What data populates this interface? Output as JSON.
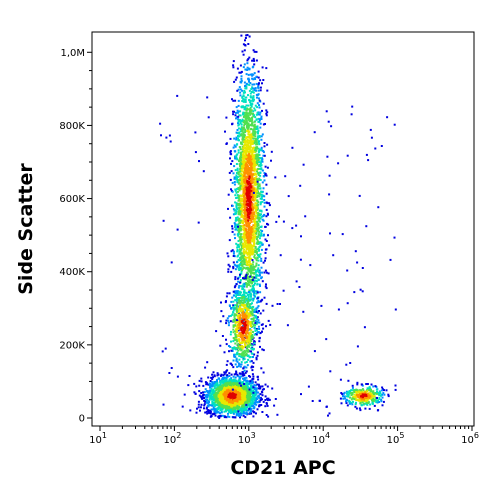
{
  "chart_data": {
    "type": "scatter",
    "title": "",
    "xlabel": "CD21 APC",
    "ylabel": "Side Scatter",
    "x_scale": "log",
    "xlim": [
      10,
      1000000
    ],
    "ylim": [
      0,
      1050000
    ],
    "grid": false,
    "legend": "none",
    "x_ticks": [
      {
        "value": 10,
        "base": "10",
        "exp": "1"
      },
      {
        "value": 100,
        "base": "10",
        "exp": "2"
      },
      {
        "value": 1000,
        "base": "10",
        "exp": "3"
      },
      {
        "value": 10000,
        "base": "10",
        "exp": "4"
      },
      {
        "value": 100000,
        "base": "10",
        "exp": "5"
      },
      {
        "value": 1000000,
        "base": "10",
        "exp": "6"
      }
    ],
    "y_ticks": [
      {
        "value": 0,
        "label": "0"
      },
      {
        "value": 200000,
        "label": "200K"
      },
      {
        "value": 400000,
        "label": "400K"
      },
      {
        "value": 600000,
        "label": "600K"
      },
      {
        "value": 800000,
        "label": "800K"
      },
      {
        "value": 1000000,
        "label": "1,0M"
      }
    ],
    "density_colors": [
      "#0000e0",
      "#0090ff",
      "#00e0c0",
      "#50e050",
      "#e8e800",
      "#ff9000",
      "#e00000"
    ],
    "populations": [
      {
        "x_center": 600,
        "y_center": 60000,
        "x_spread_decades": 0.17,
        "y_spread": 26000,
        "events": 2200
      },
      {
        "x_center": 1000,
        "y_center": 600000,
        "x_spread_decades": 0.1,
        "y_spread": 170000,
        "events": 2600
      },
      {
        "x_center": 850,
        "y_center": 250000,
        "x_spread_decades": 0.1,
        "y_spread": 55000,
        "events": 650
      },
      {
        "x_center": 35000,
        "y_center": 60000,
        "x_spread_decades": 0.13,
        "y_spread": 14000,
        "events": 320
      }
    ]
  }
}
